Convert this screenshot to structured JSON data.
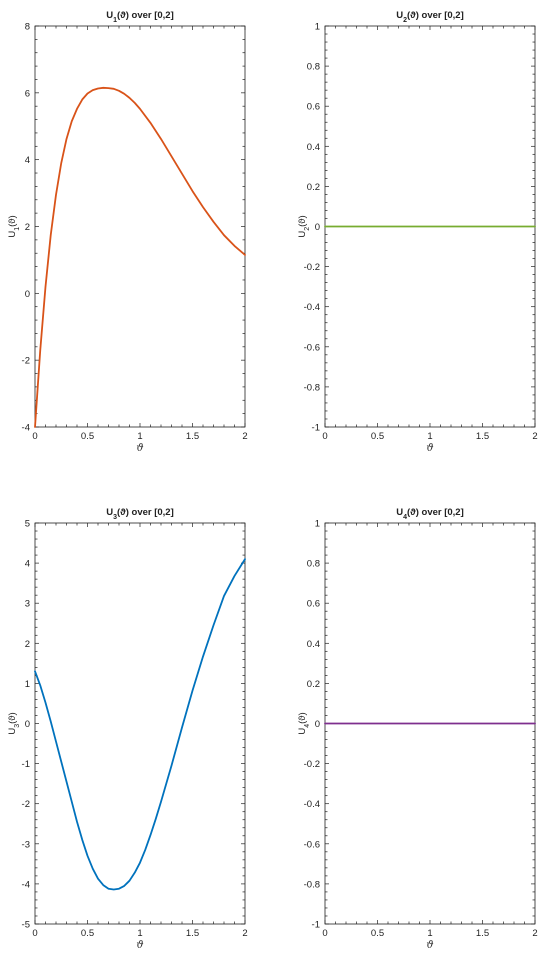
{
  "chart_data": [
    {
      "type": "line",
      "title": "U₁(ϑ) over [0,2]",
      "xlabel": "ϑ",
      "ylabel": "U₁(ϑ)",
      "xlim": [
        0,
        2
      ],
      "ylim": [
        -4,
        8
      ],
      "xticks": [
        "0",
        "0.5",
        "1",
        "1.5",
        "2"
      ],
      "xtick_values": [
        0,
        0.5,
        1,
        1.5,
        2
      ],
      "yticks": [
        "-4",
        "-2",
        "0",
        "2",
        "4",
        "6",
        "8"
      ],
      "ytick_values": [
        -4,
        -2,
        0,
        2,
        4,
        6,
        8
      ],
      "grid": false,
      "color": "#d95319",
      "series": [
        {
          "x": [
            0,
            0.025,
            0.05,
            0.1,
            0.15,
            0.2,
            0.25,
            0.3,
            0.35,
            0.4,
            0.45,
            0.5,
            0.55,
            0.6,
            0.65,
            0.7,
            0.75,
            0.8,
            0.85,
            0.9,
            0.95,
            1.0,
            1.1,
            1.2,
            1.3,
            1.4,
            1.5,
            1.6,
            1.7,
            1.8,
            1.9,
            2.0
          ],
          "values": [
            -4.0,
            -2.85,
            -1.7,
            0.2,
            1.75,
            2.95,
            3.9,
            4.62,
            5.15,
            5.52,
            5.8,
            5.98,
            6.08,
            6.13,
            6.15,
            6.14,
            6.12,
            6.06,
            5.97,
            5.85,
            5.7,
            5.52,
            5.1,
            4.62,
            4.1,
            3.58,
            3.06,
            2.58,
            2.14,
            1.74,
            1.42,
            1.15
          ]
        }
      ]
    },
    {
      "type": "line",
      "title": "U₂(ϑ) over [0,2]",
      "xlabel": "ϑ",
      "ylabel": "U₂(ϑ)",
      "xlim": [
        0,
        2
      ],
      "ylim": [
        -1,
        1
      ],
      "xticks": [
        "0",
        "0.5",
        "1",
        "1.5",
        "2"
      ],
      "xtick_values": [
        0,
        0.5,
        1,
        1.5,
        2
      ],
      "yticks": [
        "-1",
        "-0.8",
        "-0.6",
        "-0.4",
        "-0.2",
        "0",
        "0.2",
        "0.4",
        "0.6",
        "0.8",
        "1"
      ],
      "ytick_values": [
        -1,
        -0.8,
        -0.6,
        -0.4,
        -0.2,
        0,
        0.2,
        0.4,
        0.6,
        0.8,
        1
      ],
      "grid": false,
      "color": "#77ac30",
      "series": [
        {
          "x": [
            0,
            2
          ],
          "values": [
            0,
            0
          ]
        }
      ]
    },
    {
      "type": "line",
      "title": "U₃(ϑ) over [0,2]",
      "xlabel": "ϑ",
      "ylabel": "U₃(ϑ)",
      "xlim": [
        0,
        2
      ],
      "ylim": [
        -5,
        5
      ],
      "xticks": [
        "0",
        "0.5",
        "1",
        "1.5",
        "2"
      ],
      "xtick_values": [
        0,
        0.5,
        1,
        1.5,
        2
      ],
      "yticks": [
        "-5",
        "-4",
        "-3",
        "-2",
        "-1",
        "0",
        "1",
        "2",
        "3",
        "4",
        "5"
      ],
      "ytick_values": [
        -5,
        -4,
        -3,
        -2,
        -1,
        0,
        1,
        2,
        3,
        4,
        5
      ],
      "grid": false,
      "color": "#0072bd",
      "series": [
        {
          "x": [
            0,
            0.05,
            0.1,
            0.15,
            0.2,
            0.25,
            0.3,
            0.35,
            0.4,
            0.45,
            0.5,
            0.55,
            0.6,
            0.65,
            0.7,
            0.75,
            0.8,
            0.85,
            0.9,
            0.95,
            1.0,
            1.05,
            1.1,
            1.15,
            1.2,
            1.3,
            1.4,
            1.5,
            1.6,
            1.7,
            1.8,
            1.9,
            2.0
          ],
          "values": [
            1.3,
            0.95,
            0.52,
            0.05,
            -0.45,
            -0.95,
            -1.45,
            -1.95,
            -2.45,
            -2.9,
            -3.3,
            -3.62,
            -3.87,
            -4.03,
            -4.12,
            -4.14,
            -4.12,
            -4.05,
            -3.92,
            -3.72,
            -3.47,
            -3.15,
            -2.78,
            -2.38,
            -1.95,
            -1.05,
            -0.1,
            0.82,
            1.67,
            2.45,
            3.18,
            3.68,
            4.1
          ]
        }
      ]
    },
    {
      "type": "line",
      "title": "U₄(ϑ) over [0,2]",
      "xlabel": "ϑ",
      "ylabel": "U₄(ϑ)",
      "xlim": [
        0,
        2
      ],
      "ylim": [
        -1,
        1
      ],
      "xticks": [
        "0",
        "0.5",
        "1",
        "1.5",
        "2"
      ],
      "xtick_values": [
        0,
        0.5,
        1,
        1.5,
        2
      ],
      "yticks": [
        "-1",
        "-0.8",
        "-0.6",
        "-0.4",
        "-0.2",
        "0",
        "0.2",
        "0.4",
        "0.6",
        "0.8",
        "1"
      ],
      "ytick_values": [
        -1,
        -0.8,
        -0.6,
        -0.4,
        -0.2,
        0,
        0.2,
        0.4,
        0.6,
        0.8,
        1
      ],
      "grid": false,
      "color": "#7e2f8e",
      "series": [
        {
          "x": [
            0,
            2
          ],
          "values": [
            0,
            0
          ]
        }
      ]
    }
  ]
}
